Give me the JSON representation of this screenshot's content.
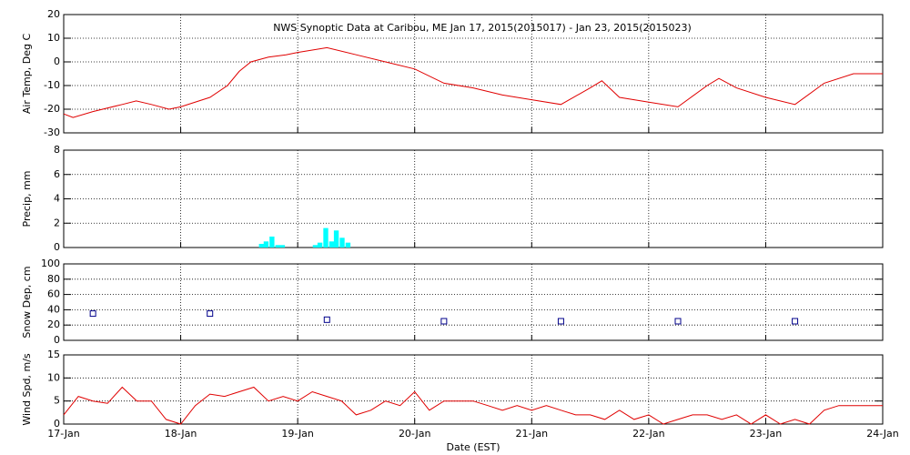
{
  "chart_data": [
    {
      "type": "line",
      "title": "NWS Synoptic Data at Caribou, ME   Jan 17, 2015(2015017) - Jan 23, 2015(2015023)",
      "ylabel": "Air Temp, Deg C",
      "color": "#e00000",
      "grid": true,
      "x": [
        17,
        17.08,
        17.25,
        17.5,
        17.62,
        17.75,
        17.9,
        18.0,
        18.25,
        18.4,
        18.5,
        18.6,
        18.75,
        18.9,
        19.0,
        19.25,
        19.5,
        19.75,
        20.0,
        20.25,
        20.5,
        20.75,
        21.0,
        21.25,
        21.5,
        21.6,
        21.75,
        22.0,
        22.25,
        22.5,
        22.6,
        22.75,
        23.0,
        23.25,
        23.5,
        23.75,
        24.0
      ],
      "values": [
        -22,
        -23.5,
        -21,
        -18,
        -16.5,
        -18,
        -20,
        -19,
        -15,
        -10,
        -4,
        0,
        2,
        3,
        4,
        6,
        3,
        0,
        -3,
        -9,
        -11,
        -14,
        -16,
        -18,
        -11,
        -8,
        -15,
        -17,
        -19,
        -10,
        -7,
        -11,
        -15,
        -18,
        -9,
        -5,
        -5
      ],
      "xlim": [
        17,
        24
      ],
      "xticks": [
        17,
        18,
        19,
        20,
        21,
        22,
        23,
        24
      ],
      "ylim": [
        -30,
        20
      ],
      "yticks": [
        -30,
        -20,
        -10,
        0,
        10,
        20
      ]
    },
    {
      "type": "bar",
      "ylabel": "Precip, mm",
      "color": "#00ffff",
      "grid": true,
      "x": [
        18.69,
        18.73,
        18.78,
        18.83,
        18.87,
        19.15,
        19.19,
        19.24,
        19.29,
        19.33,
        19.38,
        19.43
      ],
      "values": [
        0.3,
        0.5,
        0.9,
        0.2,
        0.2,
        0.2,
        0.4,
        1.6,
        0.5,
        1.4,
        0.8,
        0.4
      ],
      "xlim": [
        17,
        24
      ],
      "xticks": [
        17,
        18,
        19,
        20,
        21,
        22,
        23,
        24
      ],
      "ylim": [
        0,
        8
      ],
      "yticks": [
        0,
        2,
        4,
        6,
        8
      ]
    },
    {
      "type": "scatter",
      "ylabel": "Snow Dep, cm",
      "color": "#00008b",
      "grid": true,
      "x": [
        17.25,
        18.25,
        19.25,
        20.25,
        21.25,
        22.25,
        23.25
      ],
      "values": [
        35,
        35,
        27,
        25,
        25,
        25,
        25
      ],
      "xlim": [
        17,
        24
      ],
      "xticks": [
        17,
        18,
        19,
        20,
        21,
        22,
        23,
        24
      ],
      "ylim": [
        0,
        100
      ],
      "yticks": [
        0,
        20,
        40,
        60,
        80,
        100
      ]
    },
    {
      "type": "line",
      "ylabel": "Wind Spd, m/s",
      "xlabel": "Date (EST)",
      "color": "#e00000",
      "grid": true,
      "x": [
        17,
        17.125,
        17.25,
        17.375,
        17.5,
        17.625,
        17.75,
        17.875,
        18,
        18.125,
        18.25,
        18.375,
        18.5,
        18.625,
        18.75,
        18.875,
        19,
        19.125,
        19.25,
        19.375,
        19.5,
        19.625,
        19.75,
        19.875,
        20,
        20.125,
        20.25,
        20.375,
        20.5,
        20.625,
        20.75,
        20.875,
        21,
        21.125,
        21.25,
        21.375,
        21.5,
        21.625,
        21.75,
        21.875,
        22,
        22.125,
        22.25,
        22.375,
        22.5,
        22.625,
        22.75,
        22.875,
        23,
        23.125,
        23.25,
        23.375,
        23.5,
        23.625,
        23.75,
        23.875,
        24
      ],
      "values": [
        2,
        6,
        5,
        4.5,
        8,
        5,
        5,
        1,
        0,
        4,
        6.5,
        6,
        7,
        8,
        5,
        6,
        5,
        7,
        6,
        5,
        2,
        3,
        5,
        4,
        7,
        3,
        5,
        5,
        5,
        4,
        3,
        4,
        3,
        4,
        3,
        2,
        2,
        1,
        3,
        1,
        2,
        0,
        1,
        2,
        2,
        1,
        2,
        0,
        2,
        0,
        1,
        0,
        3,
        4,
        4,
        4,
        4
      ],
      "xlim": [
        17,
        24
      ],
      "xticks": [
        {
          "value": 17,
          "label": "17-Jan"
        },
        {
          "value": 18,
          "label": "18-Jan"
        },
        {
          "value": 19,
          "label": "19-Jan"
        },
        {
          "value": 20,
          "label": "20-Jan"
        },
        {
          "value": 21,
          "label": "21-Jan"
        },
        {
          "value": 22,
          "label": "22-Jan"
        },
        {
          "value": 23,
          "label": "23-Jan"
        },
        {
          "value": 24,
          "label": "24-Jan"
        }
      ],
      "ylim": [
        0,
        15
      ],
      "yticks": [
        0,
        5,
        10,
        15
      ]
    }
  ]
}
